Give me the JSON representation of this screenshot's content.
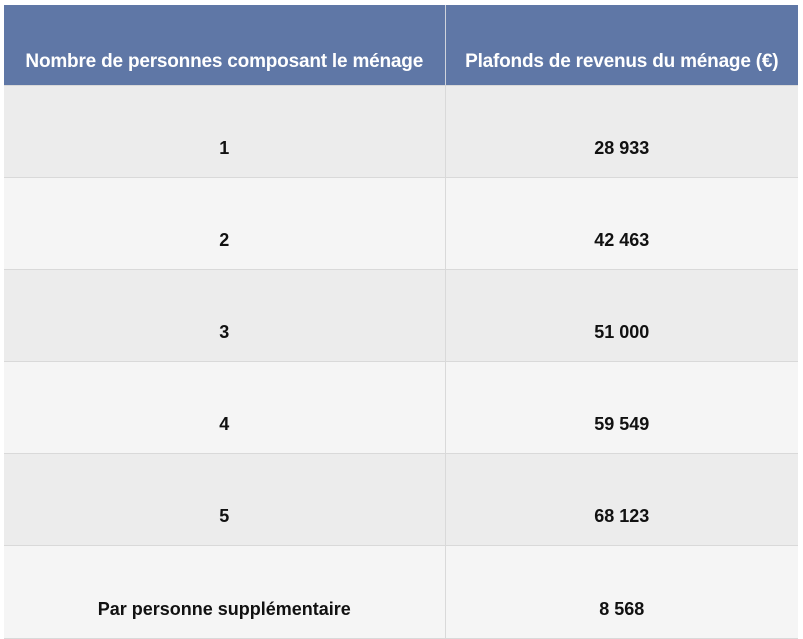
{
  "table": {
    "headers": [
      "Nombre de personnes composant le ménage",
      "Plafonds de revenus du ménage (€)"
    ],
    "rows": [
      [
        "1",
        "28 933"
      ],
      [
        "2",
        "42 463"
      ],
      [
        "3",
        "51 000"
      ],
      [
        "4",
        "59 549"
      ],
      [
        "5",
        "68 123"
      ],
      [
        "Par personne supplémentaire",
        "8 568"
      ]
    ]
  },
  "colors": {
    "header_background": "#5f77a6",
    "header_text": "#ffffff",
    "row_odd": "#ececec",
    "row_even": "#f5f5f5"
  }
}
